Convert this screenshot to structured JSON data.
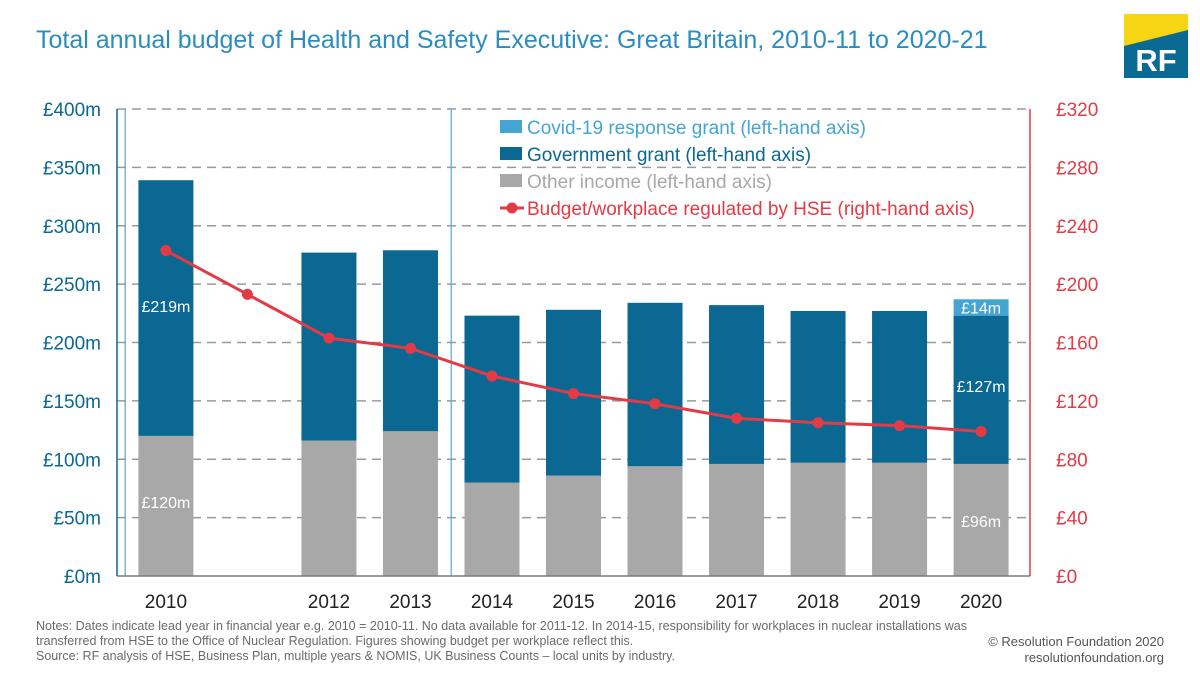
{
  "title": "Total annual budget of Health and Safety Executive: Great Britain, 2010-11 to 2020-21",
  "logo": {
    "text": "RF",
    "colors": {
      "top": "#f5d514",
      "bottom": "#0b6a94",
      "text": "#ffffff"
    }
  },
  "colors": {
    "covid": "#44a5d3",
    "grant": "#0a6892",
    "other": "#a8a8a8",
    "line": "#e33b46",
    "left_axis": "#0a6892",
    "right_axis": "#e33b46",
    "grid": "#9a9a9a"
  },
  "chart_data": {
    "type": "bar",
    "stacked": true,
    "categories": [
      "2010",
      "2012",
      "2013",
      "2014",
      "2015",
      "2016",
      "2017",
      "2018",
      "2019",
      "2020"
    ],
    "series": [
      {
        "name": "Other income (left-hand axis)",
        "axis": "left",
        "values": [
          120,
          116,
          124,
          80,
          86,
          94,
          96,
          97,
          97,
          96
        ]
      },
      {
        "name": "Government grant (left-hand  axis)",
        "axis": "left",
        "values": [
          219,
          161,
          155,
          143,
          142,
          140,
          136,
          130,
          130,
          127
        ]
      },
      {
        "name": "Covid-19 response grant  (left-hand axis)",
        "axis": "left",
        "values": [
          0,
          0,
          0,
          0,
          0,
          0,
          0,
          0,
          0,
          14
        ]
      }
    ],
    "line_series": {
      "name": "Budget/workplace regulated by HSE (right-hand axis)",
      "axis": "right",
      "x": [
        2010,
        2011,
        2012,
        2013,
        2014,
        2015,
        2016,
        2017,
        2018,
        2019,
        2020
      ],
      "values": [
        223,
        193,
        163,
        156,
        137,
        125,
        118,
        108,
        105,
        103,
        99
      ]
    },
    "x_range": [
      2009.4,
      2020.6
    ],
    "y_left": {
      "ticks": [
        "£0m",
        "£50m",
        "£100m",
        "£150m",
        "£200m",
        "£250m",
        "£300m",
        "£350m",
        "£400m"
      ],
      "range": [
        0,
        400
      ]
    },
    "y_right": {
      "ticks": [
        "£0",
        "£40",
        "£80",
        "£120",
        "£160",
        "£200",
        "£240",
        "£280",
        "£320"
      ],
      "range": [
        0,
        320
      ]
    },
    "vertical_markers": [
      2010,
      2014
    ],
    "data_labels": [
      {
        "category": "2010",
        "series": 1,
        "text": "£219m"
      },
      {
        "category": "2010",
        "series": 0,
        "text": "£120m"
      },
      {
        "category": "2020",
        "series": 2,
        "text": "£14m"
      },
      {
        "category": "2020",
        "series": 1,
        "text": "£127m"
      },
      {
        "category": "2020",
        "series": 0,
        "text": "£96m"
      }
    ],
    "legend_order": [
      2,
      1,
      0,
      "line"
    ],
    "legend_placement": "top-center",
    "grid": true
  },
  "notes": [
    "Notes: Dates indicate lead year in financial year e.g. 2010 = 2010-11. No data available for 2011-12. In 2014-15, responsibility for workplaces in nuclear installations was",
    "transferred from HSE to the Office of Nuclear Regulation. Figures showing budget per workplace reflect this.",
    "Source: RF analysis of HSE, Business Plan, multiple years & NOMIS, UK Business Counts – local units by industry."
  ],
  "credit": [
    "© Resolution Foundation 2020",
    "resolutionfoundation.org"
  ]
}
